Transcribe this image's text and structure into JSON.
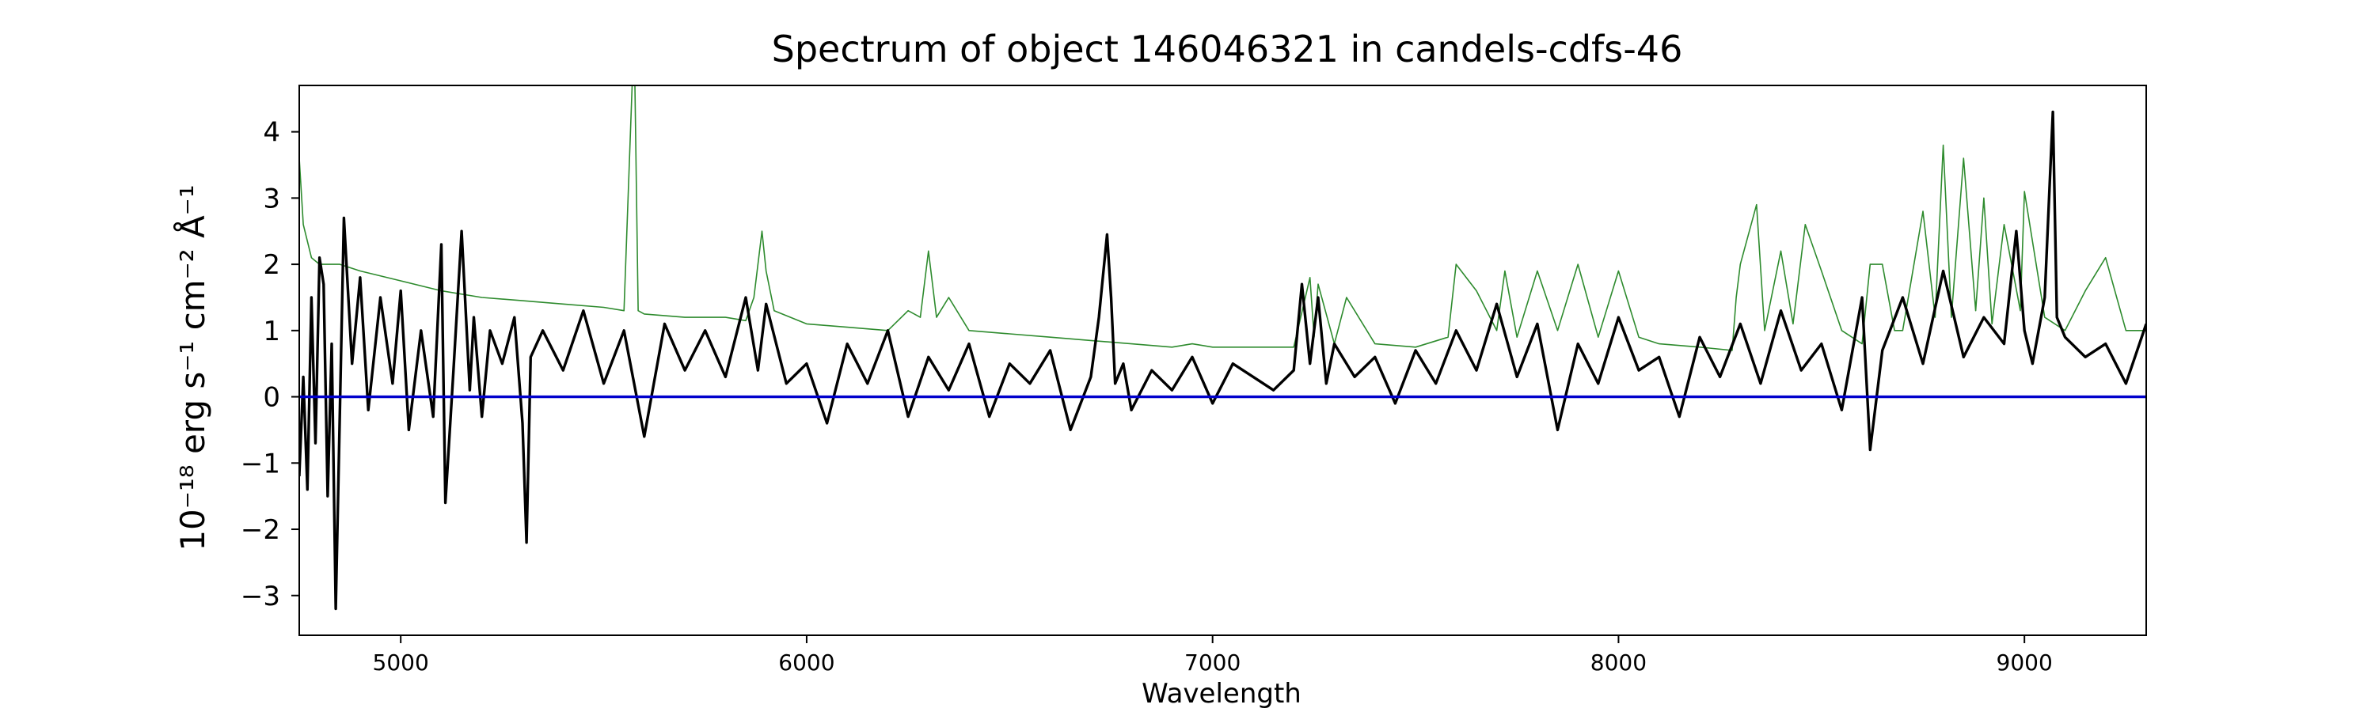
{
  "chart_data": {
    "type": "line",
    "title": "Spectrum of object 146046321 in candels-cdfs-46",
    "xlabel": "Wavelength",
    "ylabel": "10⁻¹⁸ erg s⁻¹ cm⁻² Å⁻¹",
    "xlim": [
      4750,
      9300
    ],
    "ylim": [
      -3.6,
      4.7
    ],
    "x_ticks": [
      5000,
      6000,
      7000,
      8000,
      9000
    ],
    "y_ticks": [
      -3,
      -2,
      -1,
      0,
      1,
      2,
      3,
      4
    ],
    "x_tick_labels": [
      "5000",
      "6000",
      "7000",
      "8000",
      "9000"
    ],
    "y_tick_labels": [
      "−3",
      "−2",
      "−1",
      "0",
      "1",
      "2",
      "3",
      "4"
    ],
    "grid": false,
    "series": [
      {
        "color": "#2e8b2e",
        "line_style": "thin",
        "x": [
          4750,
          4760,
          4780,
          4800,
          4850,
          4900,
          5000,
          5100,
          5200,
          5300,
          5400,
          5500,
          5550,
          5570,
          5577,
          5585,
          5600,
          5700,
          5800,
          5850,
          5870,
          5890,
          5900,
          5920,
          6000,
          6100,
          6200,
          6250,
          6280,
          6300,
          6320,
          6350,
          6400,
          6500,
          6600,
          6700,
          6800,
          6900,
          6950,
          7000,
          7100,
          7200,
          7240,
          7250,
          7260,
          7300,
          7330,
          7400,
          7500,
          7580,
          7600,
          7650,
          7700,
          7720,
          7750,
          7800,
          7850,
          7900,
          7950,
          8000,
          8050,
          8100,
          8200,
          8280,
          8290,
          8300,
          8340,
          8360,
          8400,
          8430,
          8460,
          8500,
          8550,
          8600,
          8620,
          8650,
          8680,
          8700,
          8750,
          8780,
          8800,
          8820,
          8850,
          8880,
          8900,
          8920,
          8950,
          8990,
          9000,
          9050,
          9100,
          9150,
          9200,
          9250,
          9300
        ],
        "y": [
          3.6,
          2.6,
          2.1,
          2.0,
          2.0,
          1.9,
          1.75,
          1.6,
          1.5,
          1.45,
          1.4,
          1.35,
          1.3,
          4.7,
          4.7,
          1.3,
          1.25,
          1.2,
          1.2,
          1.15,
          1.5,
          2.5,
          1.9,
          1.3,
          1.1,
          1.05,
          1.0,
          1.3,
          1.2,
          2.2,
          1.2,
          1.5,
          1.0,
          0.95,
          0.9,
          0.85,
          0.8,
          0.75,
          0.8,
          0.75,
          0.75,
          0.75,
          1.8,
          0.9,
          1.7,
          0.8,
          1.5,
          0.8,
          0.75,
          0.9,
          2.0,
          1.6,
          1.0,
          1.9,
          0.9,
          1.9,
          1.0,
          2.0,
          0.9,
          1.9,
          0.9,
          0.8,
          0.75,
          0.7,
          1.5,
          2.0,
          2.9,
          1.0,
          2.2,
          1.1,
          2.6,
          1.9,
          1.0,
          0.8,
          2.0,
          2.0,
          1.0,
          1.0,
          2.8,
          1.2,
          3.8,
          1.2,
          3.6,
          1.3,
          3.0,
          1.1,
          2.6,
          1.3,
          3.1,
          1.2,
          1.0,
          1.6,
          2.1,
          1.0,
          1.0
        ]
      },
      {
        "color": "#000000",
        "line_style": "thick",
        "x": [
          4750,
          4760,
          4770,
          4780,
          4790,
          4800,
          4810,
          4820,
          4830,
          4840,
          4860,
          4880,
          4900,
          4920,
          4950,
          4980,
          5000,
          5020,
          5050,
          5080,
          5100,
          5110,
          5130,
          5150,
          5170,
          5180,
          5200,
          5220,
          5250,
          5280,
          5300,
          5310,
          5320,
          5350,
          5400,
          5450,
          5500,
          5550,
          5600,
          5650,
          5700,
          5750,
          5800,
          5850,
          5880,
          5900,
          5950,
          6000,
          6050,
          6100,
          6150,
          6200,
          6250,
          6300,
          6350,
          6400,
          6450,
          6500,
          6550,
          6600,
          6650,
          6700,
          6720,
          6740,
          6750,
          6760,
          6780,
          6800,
          6850,
          6900,
          6950,
          7000,
          7050,
          7100,
          7150,
          7200,
          7220,
          7240,
          7260,
          7280,
          7300,
          7350,
          7400,
          7450,
          7500,
          7550,
          7600,
          7650,
          7700,
          7750,
          7800,
          7850,
          7900,
          7950,
          8000,
          8050,
          8100,
          8150,
          8200,
          8250,
          8300,
          8350,
          8400,
          8450,
          8500,
          8550,
          8600,
          8620,
          8650,
          8700,
          8750,
          8800,
          8850,
          8900,
          8950,
          8980,
          9000,
          9020,
          9050,
          9070,
          9080,
          9100,
          9150,
          9200,
          9250,
          9300
        ],
        "y": [
          -1.2,
          0.3,
          -1.4,
          1.5,
          -0.7,
          2.1,
          1.7,
          -1.5,
          0.8,
          -3.2,
          2.7,
          0.5,
          1.8,
          -0.2,
          1.5,
          0.2,
          1.6,
          -0.5,
          1.0,
          -0.3,
          2.3,
          -1.6,
          0.4,
          2.5,
          0.1,
          1.2,
          -0.3,
          1.0,
          0.5,
          1.2,
          -0.4,
          -2.2,
          0.6,
          1.0,
          0.4,
          1.3,
          0.2,
          1.0,
          -0.6,
          1.1,
          0.4,
          1.0,
          0.3,
          1.5,
          0.4,
          1.4,
          0.2,
          0.5,
          -0.4,
          0.8,
          0.2,
          1.0,
          -0.3,
          0.6,
          0.1,
          0.8,
          -0.3,
          0.5,
          0.2,
          0.7,
          -0.5,
          0.3,
          1.2,
          2.45,
          1.5,
          0.2,
          0.5,
          -0.2,
          0.4,
          0.1,
          0.6,
          -0.1,
          0.5,
          0.3,
          0.1,
          0.4,
          1.7,
          0.5,
          1.5,
          0.2,
          0.8,
          0.3,
          0.6,
          -0.1,
          0.7,
          0.2,
          1.0,
          0.4,
          1.4,
          0.3,
          1.1,
          -0.5,
          0.8,
          0.2,
          1.2,
          0.4,
          0.6,
          -0.3,
          0.9,
          0.3,
          1.1,
          0.2,
          1.3,
          0.4,
          0.8,
          -0.2,
          1.5,
          -0.8,
          0.7,
          1.5,
          0.5,
          1.9,
          0.6,
          1.2,
          0.8,
          2.5,
          1.0,
          0.5,
          1.5,
          4.3,
          1.2,
          0.9,
          0.6,
          0.8,
          0.2,
          1.1
        ]
      },
      {
        "color": "#0000cc",
        "line_style": "thick",
        "x": [
          4750,
          9300
        ],
        "y": [
          0,
          0
        ]
      }
    ]
  }
}
